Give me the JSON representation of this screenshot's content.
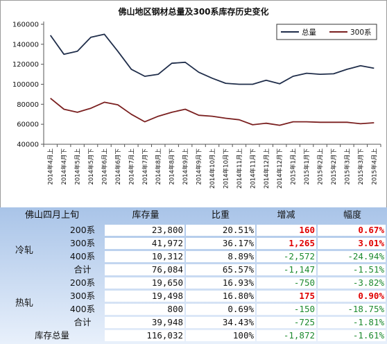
{
  "chart_data": {
    "type": "line",
    "title": "佛山地区钢材总量及300系库存历史变化",
    "categories": [
      "2014年4月上",
      "2014年4月下",
      "2014年5月上",
      "2014年5月下",
      "2014年6月上",
      "2014年6月下",
      "2014年7月上",
      "2014年7月下",
      "2014年8月上",
      "2014年8月下",
      "2014年9月上",
      "2014年9月下",
      "2014年10月上",
      "2014年10月下",
      "2014年11月上",
      "2014年11月下",
      "2014年12月上",
      "2014年12月下",
      "2015年1月上",
      "2015年1月下",
      "2015年2月上",
      "2015年2月下",
      "2015年3月上",
      "2015年3月下",
      "2015年4月上"
    ],
    "series": [
      {
        "name": "总量",
        "color": "#1f2d4a",
        "values": [
          149000,
          130000,
          133000,
          147000,
          150000,
          133000,
          115000,
          108000,
          110000,
          121000,
          122000,
          112000,
          106000,
          101000,
          100000,
          100000,
          104000,
          100500,
          108000,
          111000,
          110000,
          110500,
          115000,
          118500,
          116000
        ]
      },
      {
        "name": "300系",
        "color": "#7a1f1f",
        "values": [
          86000,
          75000,
          72000,
          76000,
          82000,
          79500,
          70000,
          62500,
          68000,
          72000,
          75000,
          69000,
          68000,
          66000,
          64500,
          59500,
          61000,
          59000,
          62500,
          62500,
          62000,
          62000,
          62000,
          60500,
          61500
        ]
      }
    ],
    "yticks": [
      40000,
      60000,
      80000,
      100000,
      120000,
      140000,
      160000
    ],
    "ylim": [
      40000,
      160000
    ],
    "legend_position": "top-right",
    "grid": false
  },
  "table": {
    "header": {
      "region": "佛山四月上旬",
      "stock": "库存量",
      "ratio": "比重",
      "change": "增减",
      "range": "幅度"
    },
    "groups": {
      "cold": "冷轧",
      "hot": "热轧"
    },
    "rows": [
      {
        "label": "200系",
        "stock": "23,800",
        "ratio": "20.51%",
        "change": "160",
        "range": "0.67%",
        "tone": "red"
      },
      {
        "label": "300系",
        "stock": "41,972",
        "ratio": "36.17%",
        "change": "1,265",
        "range": "3.01%",
        "tone": "red"
      },
      {
        "label": "400系",
        "stock": "10,312",
        "ratio": "8.89%",
        "change": "-2,572",
        "range": "-24.94%",
        "tone": "green"
      },
      {
        "label": "合计",
        "stock": "76,084",
        "ratio": "65.57%",
        "change": "-1,147",
        "range": "-1.51%",
        "tone": "green"
      },
      {
        "label": "200系",
        "stock": "19,650",
        "ratio": "16.93%",
        "change": "-750",
        "range": "-3.82%",
        "tone": "green"
      },
      {
        "label": "300系",
        "stock": "19,498",
        "ratio": "16.80%",
        "change": "175",
        "range": "0.90%",
        "tone": "red"
      },
      {
        "label": "400系",
        "stock": "800",
        "ratio": "0.69%",
        "change": "-150",
        "range": "-18.75%",
        "tone": "green"
      },
      {
        "label": "合计",
        "stock": "39,948",
        "ratio": "34.43%",
        "change": "-725",
        "range": "-1.81%",
        "tone": "green"
      },
      {
        "label": "库存总量",
        "stock": "116,032",
        "ratio": "100%",
        "change": "-1,872",
        "range": "-1.61%",
        "tone": "green"
      }
    ],
    "colors": {
      "blue_top": "#a9c4e8",
      "blue_bottom": "#e8f0fb"
    }
  }
}
